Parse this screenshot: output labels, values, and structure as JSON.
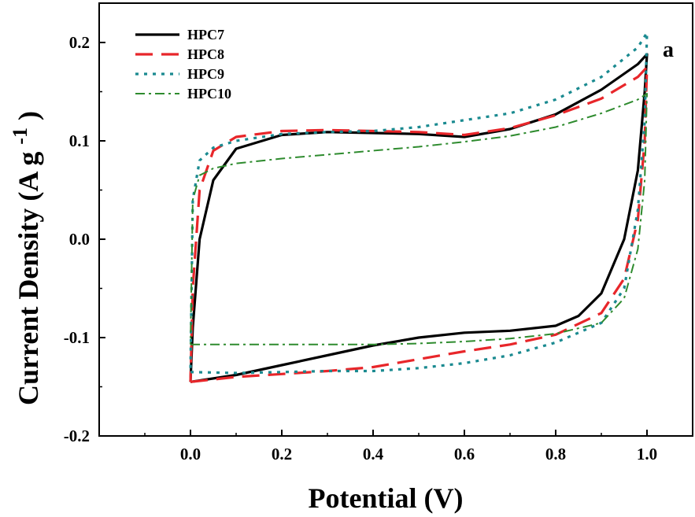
{
  "chart_data": {
    "type": "line",
    "xlabel": "Potential (V)",
    "ylabel_main": "Current Density (A g",
    "ylabel_sup": "-1",
    "ylabel_end": ")",
    "panel_label": "a",
    "xlim": [
      -0.2,
      1.1
    ],
    "ylim": [
      -0.2,
      0.24
    ],
    "xticks": [
      0.0,
      0.2,
      0.4,
      0.6,
      0.8,
      1.0
    ],
    "xtick_labels": [
      "0.0",
      "0.2",
      "0.4",
      "0.6",
      "0.8",
      "1.0"
    ],
    "yticks": [
      -0.2,
      -0.1,
      0.0,
      0.1,
      0.2
    ],
    "ytick_labels": [
      "-0.2",
      "-0.1",
      "0.0",
      "0.1",
      "0.2"
    ],
    "legend_position": "top-left",
    "series": [
      {
        "name": "HPC7",
        "color": "#000000",
        "dash": "solid",
        "points": [
          [
            0.0,
            -0.145
          ],
          [
            0.1,
            -0.138
          ],
          [
            0.2,
            -0.128
          ],
          [
            0.3,
            -0.118
          ],
          [
            0.4,
            -0.108
          ],
          [
            0.5,
            -0.1
          ],
          [
            0.6,
            -0.095
          ],
          [
            0.7,
            -0.093
          ],
          [
            0.8,
            -0.088
          ],
          [
            0.85,
            -0.078
          ],
          [
            0.9,
            -0.055
          ],
          [
            0.95,
            -0.0
          ],
          [
            0.98,
            0.07
          ],
          [
            0.995,
            0.15
          ],
          [
            1.0,
            0.188
          ],
          [
            0.98,
            0.178
          ],
          [
            0.9,
            0.152
          ],
          [
            0.8,
            0.127
          ],
          [
            0.7,
            0.112
          ],
          [
            0.6,
            0.104
          ],
          [
            0.5,
            0.107
          ],
          [
            0.4,
            0.108
          ],
          [
            0.3,
            0.109
          ],
          [
            0.2,
            0.106
          ],
          [
            0.1,
            0.092
          ],
          [
            0.05,
            0.06
          ],
          [
            0.02,
            0.0
          ],
          [
            0.005,
            -0.09
          ],
          [
            0.0,
            -0.145
          ]
        ]
      },
      {
        "name": "HPC8",
        "color": "#e8262a",
        "dash": "long-dash",
        "points": [
          [
            0.0,
            -0.145
          ],
          [
            0.1,
            -0.14
          ],
          [
            0.2,
            -0.137
          ],
          [
            0.3,
            -0.134
          ],
          [
            0.4,
            -0.13
          ],
          [
            0.5,
            -0.122
          ],
          [
            0.6,
            -0.114
          ],
          [
            0.7,
            -0.107
          ],
          [
            0.8,
            -0.097
          ],
          [
            0.9,
            -0.075
          ],
          [
            0.95,
            -0.04
          ],
          [
            0.98,
            0.02
          ],
          [
            0.995,
            0.1
          ],
          [
            1.0,
            0.175
          ],
          [
            0.98,
            0.165
          ],
          [
            0.9,
            0.143
          ],
          [
            0.8,
            0.126
          ],
          [
            0.7,
            0.113
          ],
          [
            0.6,
            0.106
          ],
          [
            0.5,
            0.109
          ],
          [
            0.4,
            0.11
          ],
          [
            0.3,
            0.111
          ],
          [
            0.2,
            0.11
          ],
          [
            0.1,
            0.104
          ],
          [
            0.05,
            0.09
          ],
          [
            0.02,
            0.05
          ],
          [
            0.005,
            -0.05
          ],
          [
            0.0,
            -0.145
          ]
        ]
      },
      {
        "name": "HPC9",
        "color": "#1a8a90",
        "dash": "dot",
        "points": [
          [
            0.0,
            -0.135
          ],
          [
            0.1,
            -0.136
          ],
          [
            0.2,
            -0.135
          ],
          [
            0.3,
            -0.134
          ],
          [
            0.4,
            -0.134
          ],
          [
            0.5,
            -0.131
          ],
          [
            0.6,
            -0.126
          ],
          [
            0.7,
            -0.118
          ],
          [
            0.8,
            -0.105
          ],
          [
            0.9,
            -0.085
          ],
          [
            0.95,
            -0.05
          ],
          [
            0.98,
            0.03
          ],
          [
            0.995,
            0.12
          ],
          [
            1.0,
            0.21
          ],
          [
            0.98,
            0.195
          ],
          [
            0.9,
            0.165
          ],
          [
            0.8,
            0.142
          ],
          [
            0.7,
            0.128
          ],
          [
            0.6,
            0.121
          ],
          [
            0.5,
            0.114
          ],
          [
            0.4,
            0.11
          ],
          [
            0.3,
            0.109
          ],
          [
            0.2,
            0.107
          ],
          [
            0.1,
            0.1
          ],
          [
            0.05,
            0.093
          ],
          [
            0.02,
            0.08
          ],
          [
            0.005,
            0.04
          ],
          [
            0.0,
            -0.135
          ]
        ]
      },
      {
        "name": "HPC10",
        "color": "#2e8b2e",
        "dash": "dash-dot",
        "points": [
          [
            0.0,
            -0.107
          ],
          [
            0.1,
            -0.107
          ],
          [
            0.2,
            -0.107
          ],
          [
            0.3,
            -0.107
          ],
          [
            0.4,
            -0.107
          ],
          [
            0.5,
            -0.106
          ],
          [
            0.6,
            -0.104
          ],
          [
            0.7,
            -0.101
          ],
          [
            0.8,
            -0.096
          ],
          [
            0.9,
            -0.085
          ],
          [
            0.95,
            -0.06
          ],
          [
            0.98,
            -0.01
          ],
          [
            0.995,
            0.06
          ],
          [
            1.0,
            0.148
          ],
          [
            0.98,
            0.142
          ],
          [
            0.9,
            0.128
          ],
          [
            0.8,
            0.114
          ],
          [
            0.7,
            0.105
          ],
          [
            0.6,
            0.099
          ],
          [
            0.5,
            0.094
          ],
          [
            0.4,
            0.09
          ],
          [
            0.3,
            0.086
          ],
          [
            0.2,
            0.082
          ],
          [
            0.1,
            0.077
          ],
          [
            0.05,
            0.072
          ],
          [
            0.02,
            0.065
          ],
          [
            0.005,
            0.04
          ],
          [
            0.0,
            -0.107
          ]
        ]
      }
    ]
  }
}
